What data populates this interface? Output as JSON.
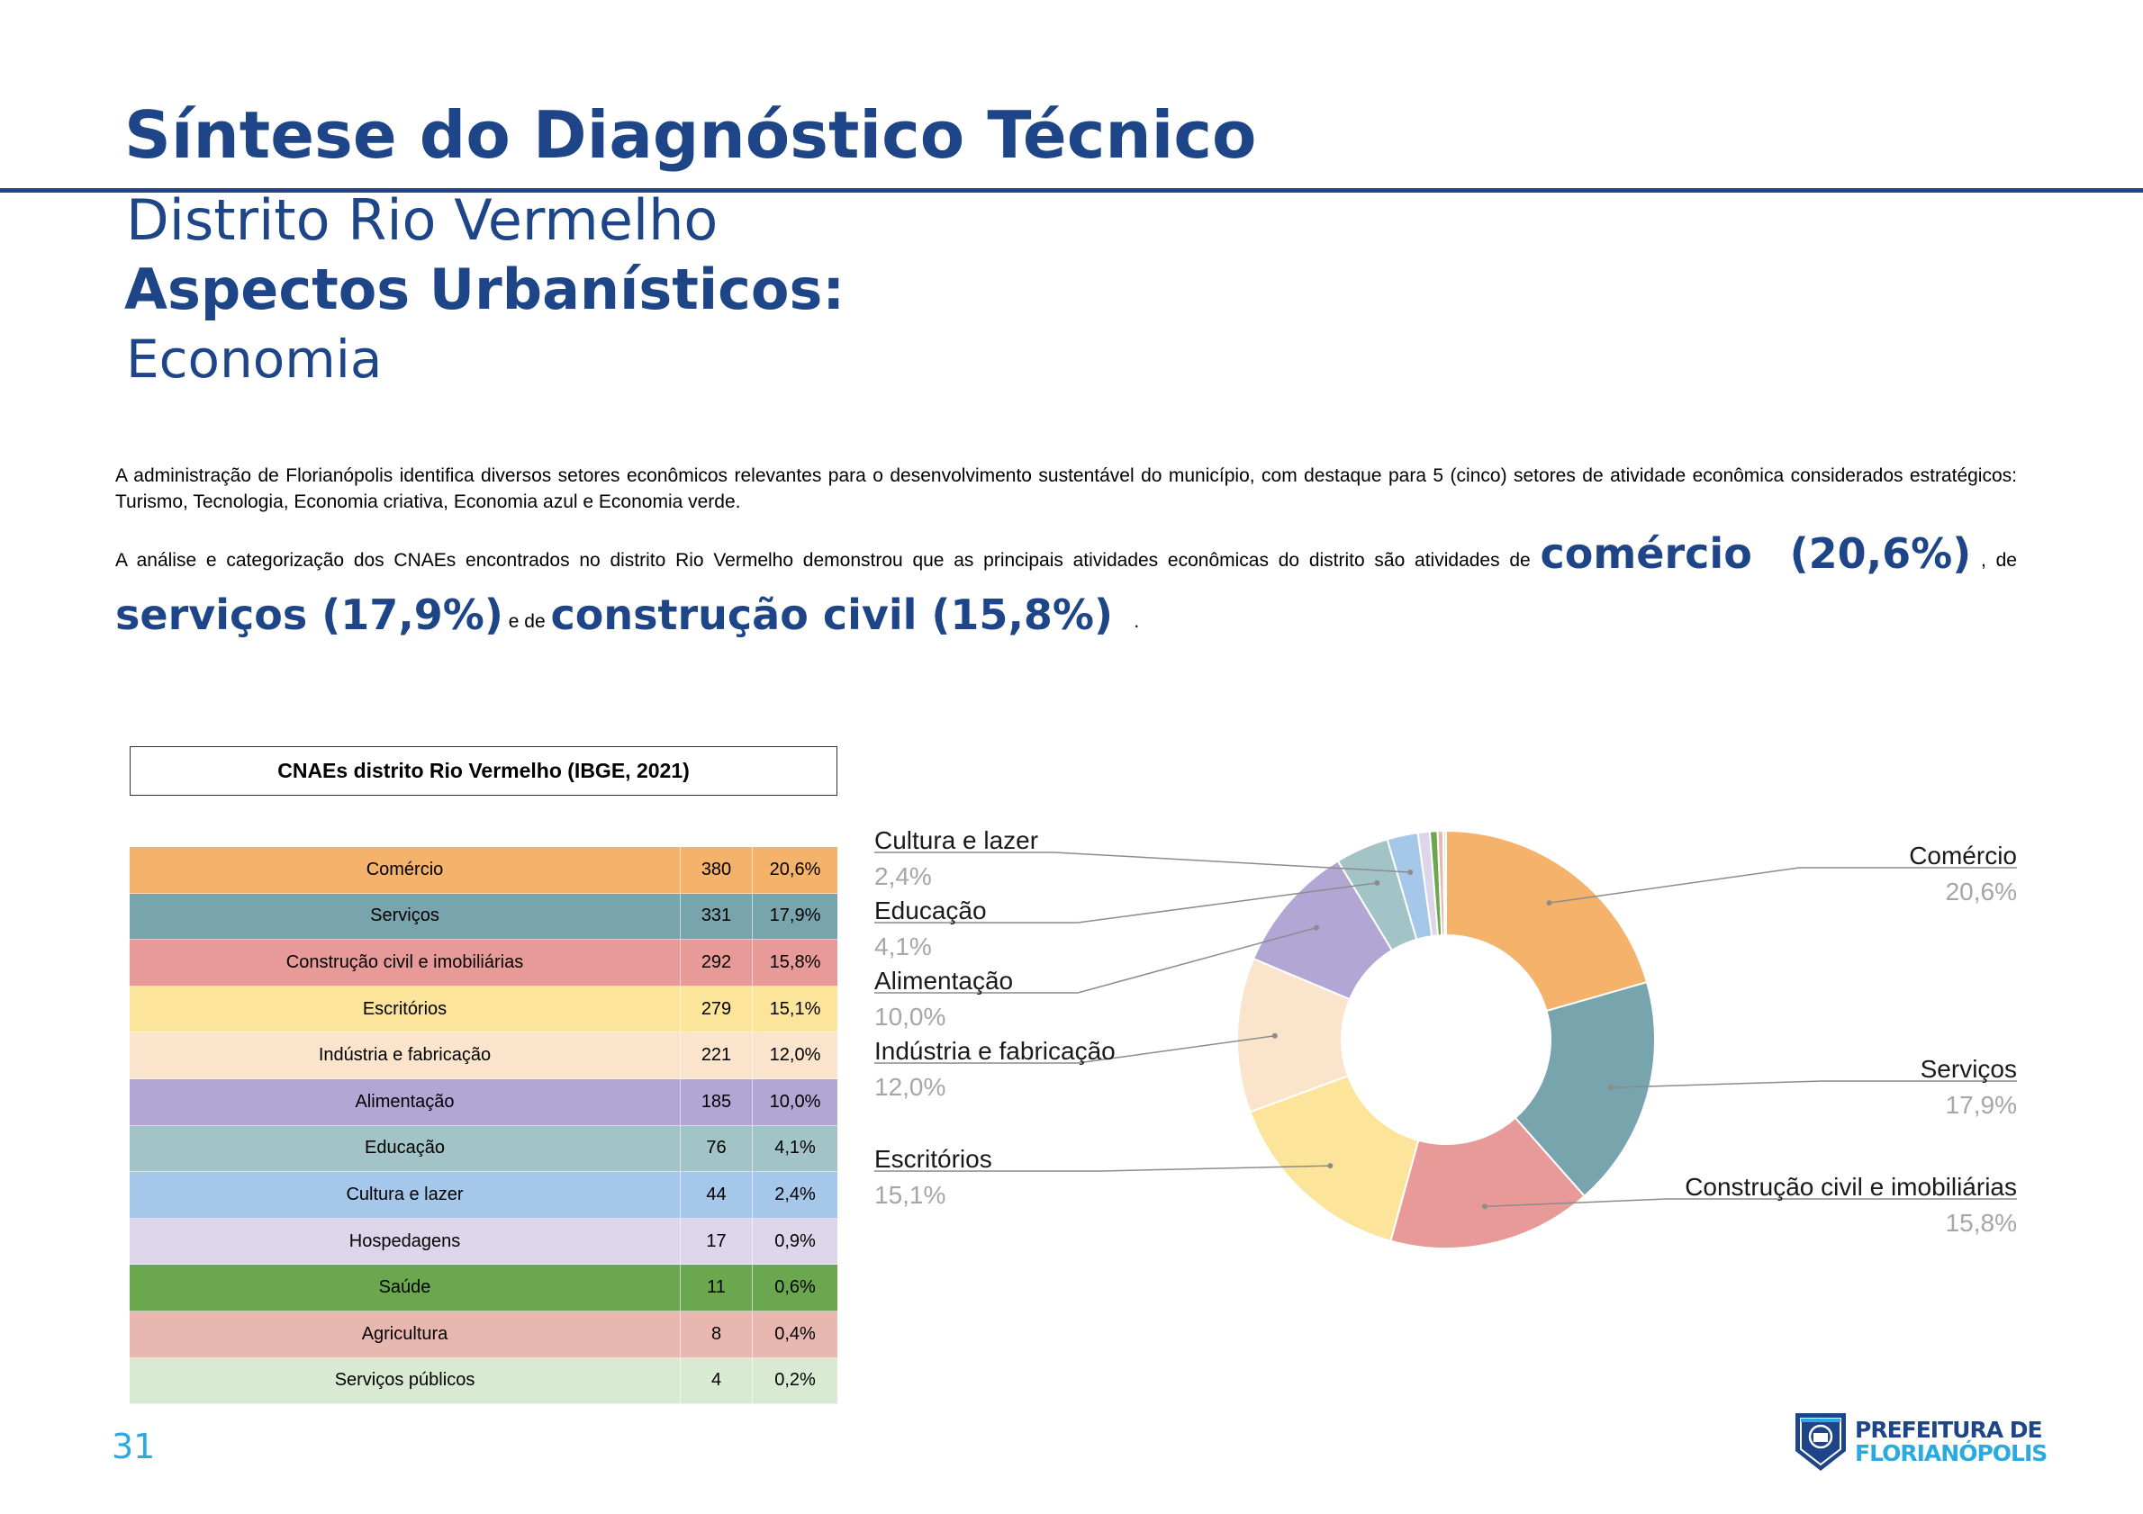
{
  "header": {
    "title": "Síntese do Diagnóstico Técnico",
    "subtitle": "Distrito Rio Vermelho",
    "section": "Aspectos Urbanísticos:",
    "subsection": "Economia"
  },
  "body": {
    "paragraph1": "A administração de Florianópolis identifica diversos setores econômicos relevantes para o desenvolvimento sustentável do município, com destaque para 5 (cinco) setores de atividade econômica considerados estratégicos: Turismo, Tecnologia, Economia criativa, Economia azul e Economia verde.",
    "paragraph2_intro": "A análise e categorização dos CNAEs encontrados no distrito Rio Vermelho demonstrou que as principais atividades econômicas do distrito são atividades de",
    "highlight1": "comércio  (20,6%)",
    "connector1": ", de",
    "highlight2": "serviços (17,9%)",
    "connector2": "e de",
    "highlight3": "construção civil (15,8%)",
    "end": "."
  },
  "table": {
    "title": "CNAEs distrito Rio Vermelho (IBGE, 2021)",
    "rows": [
      {
        "name": "Comércio",
        "count": "380",
        "pct": "20,6%",
        "color": "#f4b26a"
      },
      {
        "name": "Serviços",
        "count": "331",
        "pct": "17,9%",
        "color": "#78a4ae"
      },
      {
        "name": "Construção civil e imobiliárias",
        "count": "292",
        "pct": "15,8%",
        "color": "#e89a99"
      },
      {
        "name": "Escritórios",
        "count": "279",
        "pct": "15,1%",
        "color": "#fde49b"
      },
      {
        "name": "Indústria e fabricação",
        "count": "221",
        "pct": "12,0%",
        "color": "#fbe4cc"
      },
      {
        "name": "Alimentação",
        "count": "185",
        "pct": "10,0%",
        "color": "#b2a6d5"
      },
      {
        "name": "Educação",
        "count": "76",
        "pct": "4,1%",
        "color": "#a3c4c6"
      },
      {
        "name": "Cultura e lazer",
        "count": "44",
        "pct": "2,4%",
        "color": "#a4c7ea"
      },
      {
        "name": "Hospedagens",
        "count": "17",
        "pct": "0,9%",
        "color": "#ddd6ea"
      },
      {
        "name": "Saúde",
        "count": "11",
        "pct": "0,6%",
        "color": "#6aa74f"
      },
      {
        "name": "Agricultura",
        "count": "8",
        "pct": "0,4%",
        "color": "#e8b8b0"
      },
      {
        "name": "Serviços públicos",
        "count": "4",
        "pct": "0,2%",
        "color": "#d9ead3"
      }
    ]
  },
  "chart_data": {
    "type": "pie",
    "donut": true,
    "title": "",
    "categories": [
      "Comércio",
      "Serviços",
      "Construção civil e imobiliárias",
      "Escritórios",
      "Indústria e fabricação",
      "Alimentação",
      "Educação",
      "Cultura e lazer",
      "Hospedagens",
      "Saúde",
      "Agricultura",
      "Serviços públicos"
    ],
    "values": [
      380,
      331,
      292,
      279,
      221,
      185,
      76,
      44,
      17,
      11,
      8,
      4
    ],
    "colors": [
      "#f4b26a",
      "#78a4ae",
      "#e89a99",
      "#fde49b",
      "#fbe4cc",
      "#b2a6d5",
      "#a3c4c6",
      "#a4c7ea",
      "#ddd6ea",
      "#6aa74f",
      "#e8b8b0",
      "#d9ead3"
    ],
    "labels": [
      {
        "name": "Comércio",
        "pct": "20,6%"
      },
      {
        "name": "Serviços",
        "pct": "17,9%"
      },
      {
        "name": "Construção civil e imobiliárias",
        "pct": "15,8%"
      },
      {
        "name": "Escritórios",
        "pct": "15,1%"
      },
      {
        "name": "Indústria e fabricação",
        "pct": "12,0%"
      },
      {
        "name": "Alimentação",
        "pct": "10,0%"
      },
      {
        "name": "Educação",
        "pct": "4,1%"
      },
      {
        "name": "Cultura e lazer",
        "pct": "2,4%"
      }
    ]
  },
  "footer": {
    "page_number": "31",
    "logo_line1": "PREFEITURA DE",
    "logo_line2": "FLORIANÓPOLIS"
  }
}
